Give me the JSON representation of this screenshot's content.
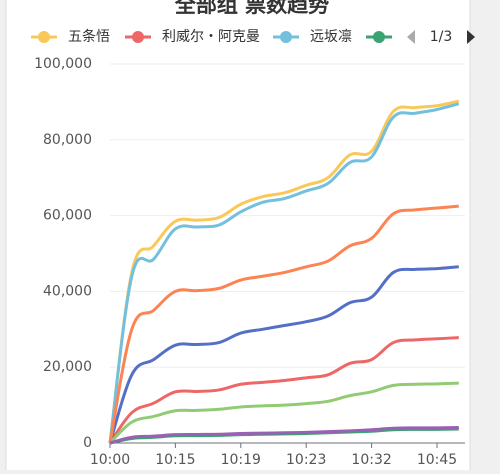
{
  "chart_data": {
    "type": "line",
    "title": "全部组 票数趋势",
    "legend_page": "1/3",
    "categories": [
      "10:00",
      null,
      null,
      "10:15",
      null,
      null,
      "10:19",
      null,
      null,
      "10:23",
      null,
      null,
      "10:32",
      null,
      null,
      "10:45",
      null
    ],
    "series": [
      {
        "name": "五条悟",
        "color": "#fac858",
        "values": [
          0,
          45000,
          52000,
          58500,
          58800,
          59500,
          63000,
          65000,
          66000,
          68000,
          70000,
          76000,
          77000,
          87500,
          88500,
          89000,
          90200
        ]
      },
      {
        "name": "利威尔・阿克曼",
        "color": "#ee6666",
        "values": [
          0,
          8000,
          10500,
          13500,
          13600,
          14000,
          15500,
          16000,
          16500,
          17200,
          18000,
          21000,
          22000,
          26500,
          27200,
          27500,
          27800
        ]
      },
      {
        "name": "远坂凛",
        "color": "#73c0de",
        "values": [
          0,
          44000,
          48500,
          56500,
          57000,
          57500,
          61000,
          63500,
          64500,
          66500,
          68500,
          74000,
          75500,
          86000,
          87000,
          88000,
          89500
        ]
      },
      {
        "color": "#3ba272",
        "values": [
          0,
          1200,
          1500,
          1900,
          1950,
          2000,
          2200,
          2300,
          2400,
          2500,
          2700,
          2900,
          3100,
          3500,
          3600,
          3600,
          3700
        ]
      },
      {
        "color": "#5470c6",
        "values": [
          0,
          18000,
          22000,
          25800,
          26000,
          26500,
          29000,
          30000,
          31000,
          32000,
          33500,
          37000,
          38500,
          45000,
          45800,
          46000,
          46500
        ]
      },
      {
        "color": "#91cc75",
        "values": [
          0,
          5500,
          7000,
          8500,
          8600,
          8900,
          9500,
          9800,
          10000,
          10400,
          11000,
          12500,
          13500,
          15200,
          15500,
          15600,
          15800
        ]
      },
      {
        "color": "#fc8452",
        "values": [
          0,
          30000,
          35000,
          40000,
          40200,
          40800,
          43000,
          44000,
          45000,
          46500,
          48000,
          52000,
          54000,
          60500,
          61500,
          62000,
          62500
        ]
      },
      {
        "color": "#9a60b4",
        "values": [
          0,
          1500,
          1800,
          2200,
          2250,
          2300,
          2500,
          2600,
          2700,
          2800,
          3000,
          3200,
          3500,
          3900,
          4000,
          4000,
          4100
        ]
      }
    ],
    "ylim": [
      0,
      100000
    ],
    "yticks": [
      0,
      {
        "value": 20000,
        "label": "20,000"
      },
      {
        "value": 40000,
        "label": "40,000"
      },
      {
        "value": 60000,
        "label": "60,000"
      },
      {
        "value": 80000,
        "label": "80,000"
      },
      {
        "value": 100000,
        "label": "100,000"
      }
    ],
    "grid": true
  }
}
